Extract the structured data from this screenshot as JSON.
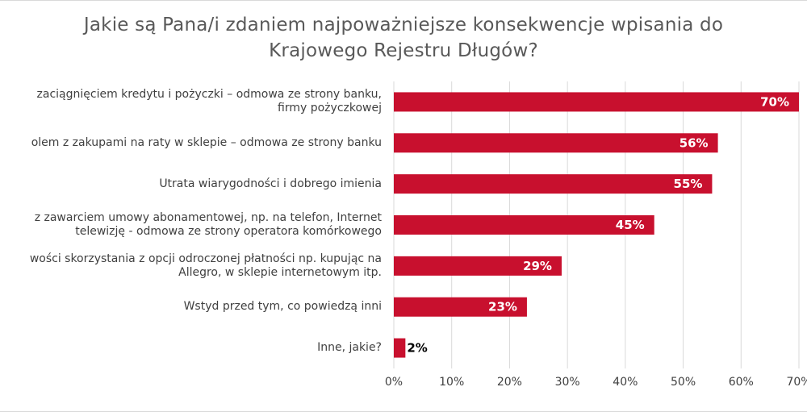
{
  "chart_data": {
    "type": "bar",
    "orientation": "horizontal",
    "title_lines": [
      "Jakie są Pana/i zdaniem najpoważniejsze konsekwencje wpisania do",
      "Krajowego Rejestru Długów?"
    ],
    "categories": [
      [
        "zaciągnięciem kredytu i pożyczki – odmowa ze strony banku,",
        "firmy pożyczkowej"
      ],
      [
        "olem z zakupami na raty w sklepie – odmowa ze strony banku"
      ],
      [
        "Utrata wiarygodności i dobrego imienia"
      ],
      [
        "z zawarciem umowy abonamentowej, np. na telefon, Internet",
        "telewizję - odmowa ze strony operatora komórkowego"
      ],
      [
        "wości skorzystania z opcji odroczonej płatności np. kupując na",
        "Allegro, w sklepie internetowym itp."
      ],
      [
        "Wstyd przed tym, co powiedzą inni"
      ],
      [
        "Inne, jakie?"
      ]
    ],
    "values": [
      70,
      56,
      55,
      45,
      29,
      23,
      2
    ],
    "value_labels": [
      "70%",
      "56%",
      "55%",
      "45%",
      "29%",
      "23%",
      "2%"
    ],
    "xticks": [
      "0%",
      "10%",
      "20%",
      "30%",
      "40%",
      "50%",
      "60%",
      "70%"
    ],
    "xlim": [
      0,
      70
    ],
    "grid": true,
    "legend": "none",
    "colors": {
      "bar": "#c8102e",
      "grid": "#d9d9d9",
      "label_inside": "#ffffff",
      "label_outside": "#000000",
      "text": "#404040",
      "title": "#595959"
    }
  }
}
